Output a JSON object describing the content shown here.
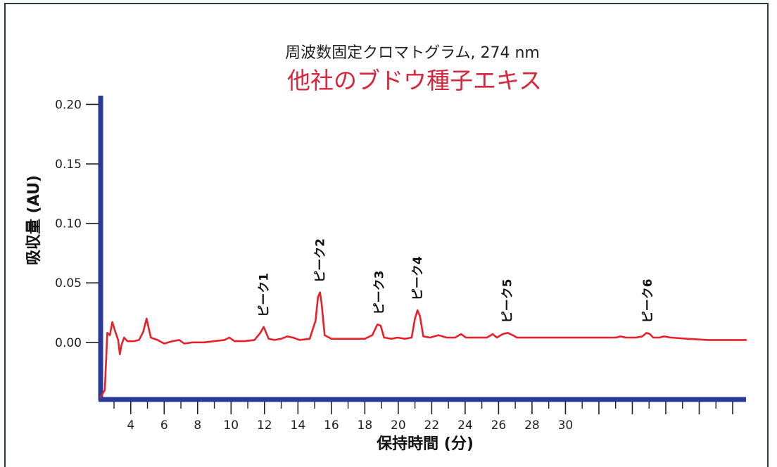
{
  "chart_data": {
    "type": "line",
    "title": "周波数固定クロマトグラム, 274 nm",
    "subtitle": "他社のブドウ種子エキス",
    "xlabel": "保持時間 (分)",
    "ylabel": "吸収量 (AU)",
    "xlim": [
      2.2,
      40.8
    ],
    "ylim": [
      -0.048,
      0.205
    ],
    "x_ticks": [
      4,
      6,
      8,
      10,
      12,
      14,
      16,
      18,
      20,
      22,
      24,
      26,
      28,
      30
    ],
    "y_ticks": [
      {
        "value": 0.0,
        "label": "0.00"
      },
      {
        "value": 0.05,
        "label": "0.05"
      },
      {
        "value": 0.1,
        "label": "0.10"
      },
      {
        "value": 0.15,
        "label": "0.15"
      },
      {
        "value": 0.2,
        "label": "0.20"
      }
    ],
    "extra_tick_marks_x": [
      32,
      34,
      36,
      38,
      40
    ],
    "grid": false,
    "colors": {
      "line": "#e8202a",
      "axis": "#2b3a9a",
      "subtitle": "#d7263d"
    },
    "series": [
      {
        "points": [
          [
            2.2,
            -0.046
          ],
          [
            2.45,
            -0.04
          ],
          [
            2.6,
            0.008
          ],
          [
            2.75,
            0.006
          ],
          [
            2.9,
            0.017
          ],
          [
            3.1,
            0.008
          ],
          [
            3.25,
            0.002
          ],
          [
            3.35,
            -0.01
          ],
          [
            3.45,
            -0.002
          ],
          [
            3.6,
            0.004
          ],
          [
            3.8,
            0.001
          ],
          [
            4.2,
            0.001
          ],
          [
            4.5,
            0.002
          ],
          [
            4.75,
            0.009
          ],
          [
            4.95,
            0.02
          ],
          [
            5.2,
            0.004
          ],
          [
            5.6,
            0.002
          ],
          [
            6.0,
            -0.001
          ],
          [
            6.5,
            0.001
          ],
          [
            6.9,
            0.002
          ],
          [
            7.2,
            -0.001
          ],
          [
            7.7,
            0.0
          ],
          [
            8.4,
            0.0
          ],
          [
            9.0,
            0.001
          ],
          [
            9.6,
            0.002
          ],
          [
            9.9,
            0.004
          ],
          [
            10.2,
            0.001
          ],
          [
            10.8,
            0.001
          ],
          [
            11.4,
            0.002
          ],
          [
            11.75,
            0.008
          ],
          [
            11.95,
            0.013
          ],
          [
            12.25,
            0.003
          ],
          [
            12.6,
            0.002
          ],
          [
            13.0,
            0.003
          ],
          [
            13.35,
            0.005
          ],
          [
            13.7,
            0.004
          ],
          [
            14.1,
            0.002
          ],
          [
            14.7,
            0.003
          ],
          [
            15.05,
            0.018
          ],
          [
            15.2,
            0.038
          ],
          [
            15.32,
            0.042
          ],
          [
            15.42,
            0.032
          ],
          [
            15.6,
            0.006
          ],
          [
            16.0,
            0.003
          ],
          [
            17.0,
            0.003
          ],
          [
            18.0,
            0.003
          ],
          [
            18.45,
            0.006
          ],
          [
            18.75,
            0.015
          ],
          [
            18.95,
            0.014
          ],
          [
            19.15,
            0.004
          ],
          [
            19.6,
            0.003
          ],
          [
            19.95,
            0.004
          ],
          [
            20.4,
            0.003
          ],
          [
            20.8,
            0.004
          ],
          [
            21.0,
            0.02
          ],
          [
            21.15,
            0.027
          ],
          [
            21.3,
            0.022
          ],
          [
            21.5,
            0.005
          ],
          [
            21.9,
            0.004
          ],
          [
            22.4,
            0.006
          ],
          [
            22.9,
            0.004
          ],
          [
            23.4,
            0.004
          ],
          [
            23.75,
            0.007
          ],
          [
            24.05,
            0.004
          ],
          [
            24.8,
            0.004
          ],
          [
            25.3,
            0.004
          ],
          [
            25.65,
            0.007
          ],
          [
            25.9,
            0.004
          ],
          [
            26.25,
            0.007
          ],
          [
            26.55,
            0.008
          ],
          [
            26.85,
            0.006
          ],
          [
            27.1,
            0.004
          ],
          [
            29.0,
            0.004
          ],
          [
            31.0,
            0.004
          ],
          [
            33.0,
            0.004
          ],
          [
            33.3,
            0.005
          ],
          [
            33.6,
            0.004
          ],
          [
            34.2,
            0.004
          ],
          [
            34.6,
            0.005
          ],
          [
            34.85,
            0.008
          ],
          [
            35.05,
            0.007
          ],
          [
            35.25,
            0.004
          ],
          [
            35.6,
            0.004
          ],
          [
            35.9,
            0.005
          ],
          [
            36.3,
            0.004
          ],
          [
            37.3,
            0.003
          ],
          [
            38.5,
            0.002
          ],
          [
            40.8,
            0.002
          ]
        ]
      }
    ],
    "annotations": [
      {
        "text": "ピーク1",
        "x": 11.95,
        "y": 0.013
      },
      {
        "text": "ピーク2",
        "x": 15.32,
        "y": 0.042
      },
      {
        "text": "ピーク3",
        "x": 18.85,
        "y": 0.015
      },
      {
        "text": "ピーク4",
        "x": 21.15,
        "y": 0.027
      },
      {
        "text": "ピーク5",
        "x": 26.5,
        "y": 0.008
      },
      {
        "text": "ピーク6",
        "x": 34.9,
        "y": 0.008
      }
    ]
  }
}
